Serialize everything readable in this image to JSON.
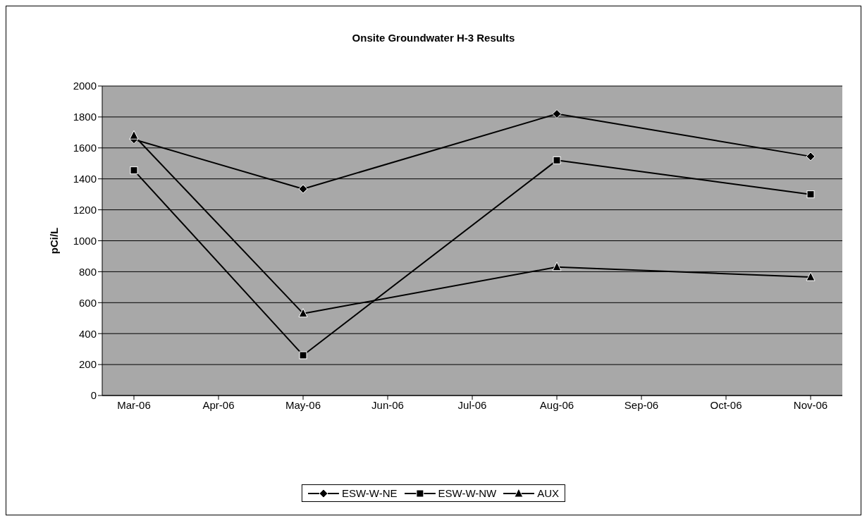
{
  "chart_data": {
    "type": "line",
    "title": "Onsite Groundwater H-3 Results",
    "ylabel": "pCi/L",
    "categories": [
      "Mar-06",
      "Apr-06",
      "May-06",
      "Jun-06",
      "Jul-06",
      "Aug-06",
      "Sep-06",
      "Oct-06",
      "Nov-06"
    ],
    "series": [
      {
        "name": "ESW-W-NE",
        "color": "#000000",
        "marker": "diamond",
        "values": [
          1655,
          null,
          1335,
          null,
          null,
          1820,
          null,
          null,
          1545
        ]
      },
      {
        "name": "ESW-W-NW",
        "color": "#000000",
        "marker": "square",
        "values": [
          1455,
          null,
          260,
          null,
          null,
          1520,
          null,
          null,
          1300
        ]
      },
      {
        "name": "AUX",
        "color": "#000000",
        "marker": "triangle",
        "values": [
          1680,
          null,
          530,
          null,
          null,
          830,
          null,
          null,
          765
        ]
      }
    ],
    "ylim": [
      0,
      2000
    ],
    "yticks": [
      0,
      200,
      400,
      600,
      800,
      1000,
      1200,
      1400,
      1600,
      1800,
      2000
    ],
    "grid": "y",
    "legend": "bottom",
    "line_style": "solid"
  }
}
